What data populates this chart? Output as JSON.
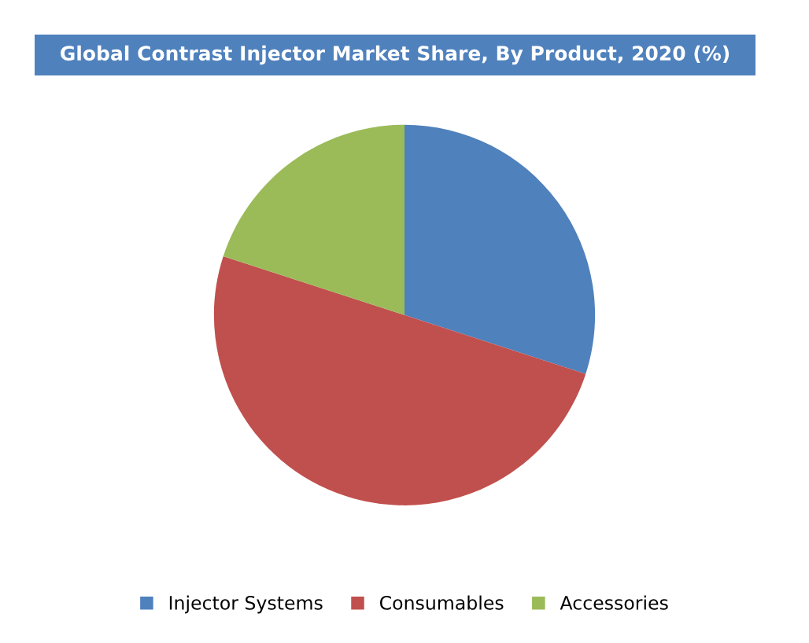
{
  "chart_data": {
    "type": "pie",
    "title": "Global Contrast Injector Market Share, By Product, 2020 (%)",
    "categories": [
      "Injector Systems",
      "Consumables",
      "Accessories"
    ],
    "values": [
      30,
      50,
      20
    ],
    "colors": [
      "#4f81bd",
      "#c0504d",
      "#9bbb59"
    ],
    "legend": "bottom"
  }
}
